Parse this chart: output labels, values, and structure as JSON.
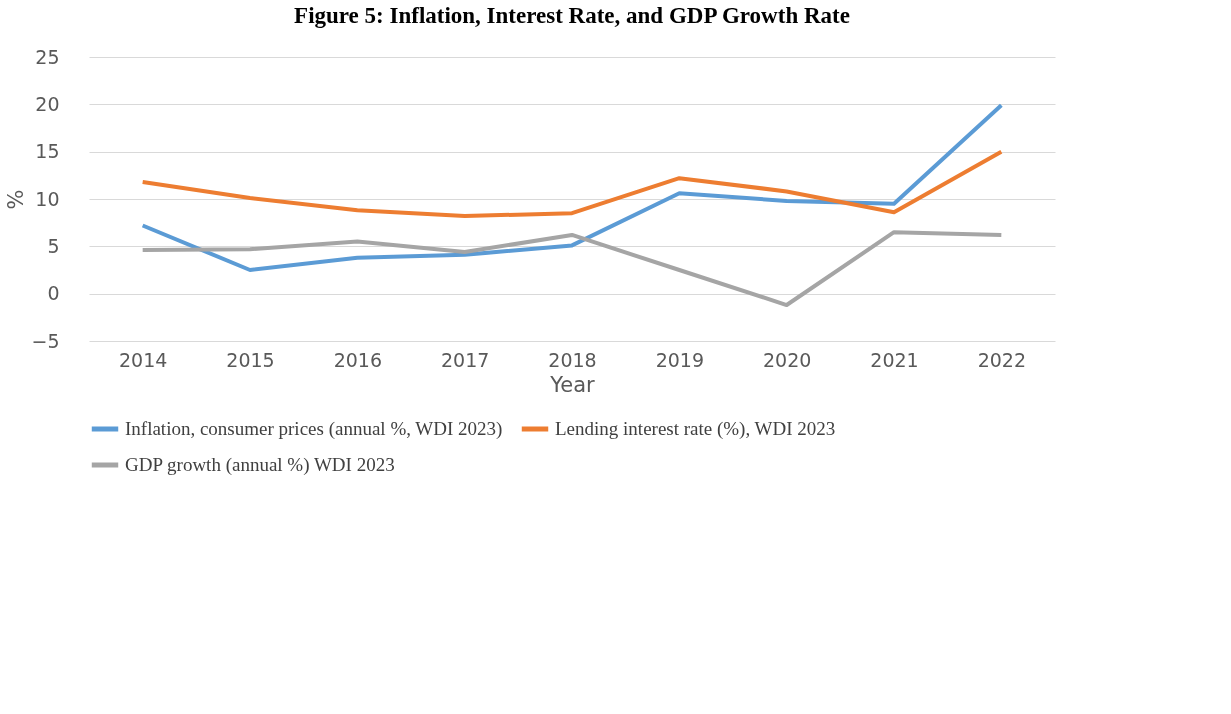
{
  "chart_data": {
    "type": "line",
    "title": "Figure 5: Inflation, Interest Rate, and GDP Growth Rate",
    "xlabel": "Year",
    "ylabel": "%",
    "categories": [
      "2014",
      "2015",
      "2016",
      "2017",
      "2018",
      "2019",
      "2020",
      "2021",
      "2022"
    ],
    "series": [
      {
        "name": "Inflation, consumer prices (annual %, WDI 2023)",
        "color": "#5b9bd5",
        "values": [
          7.2,
          2.5,
          3.8,
          4.1,
          5.1,
          10.6,
          9.8,
          9.5,
          19.9
        ]
      },
      {
        "name": "Lending interest rate (%), WDI 2023",
        "color": "#ed7d31",
        "values": [
          11.8,
          10.1,
          8.8,
          8.2,
          8.5,
          12.2,
          10.8,
          8.6,
          15.0
        ]
      },
      {
        "name": "GDP growth (annual %) WDI 2023",
        "color": "#a5a5a5",
        "values": [
          4.6,
          4.7,
          5.5,
          4.4,
          6.2,
          2.5,
          -1.2,
          6.5,
          6.2
        ]
      }
    ],
    "ylim": [
      -5,
      25
    ],
    "yticks": [
      -5,
      0,
      5,
      10,
      15,
      20,
      25
    ],
    "grid": "y",
    "legend": "bottom",
    "marker": "none",
    "line_style": "solid"
  }
}
